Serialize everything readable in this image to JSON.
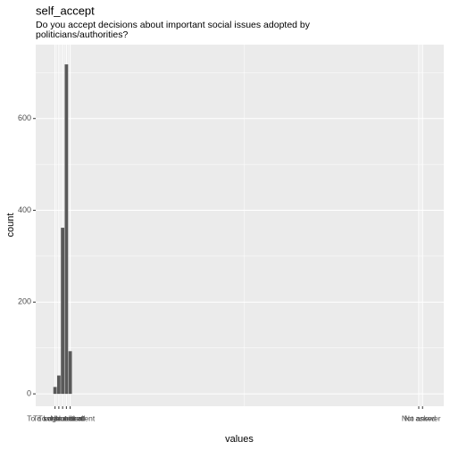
{
  "chart_data": {
    "type": "bar",
    "title": "self_accept",
    "subtitle": "Do you accept decisions about important social issues adopted by politicians/authorities?",
    "x_label": "values",
    "y_label": "count",
    "x": [
      1,
      2,
      3,
      4,
      5
    ],
    "values": [
      15,
      40,
      362,
      718,
      93
    ],
    "color": "#595959",
    "xlim": [
      -4.1,
      103.6
    ],
    "xticks": [
      {
        "value": 1,
        "label": "To a large extent"
      },
      {
        "value": 2,
        "label": "To some extent"
      },
      {
        "value": 3,
        "label": "Neutral"
      },
      {
        "value": 4,
        "label": "To a small extent"
      },
      {
        "value": 5,
        "label": "Not at all"
      },
      {
        "value": 97,
        "label": "Not asked"
      },
      {
        "value": 98,
        "label": "No answer"
      }
    ],
    "ylim": [
      -27,
      761
    ],
    "yticks": [
      0,
      200,
      400,
      600
    ],
    "grid": true
  }
}
